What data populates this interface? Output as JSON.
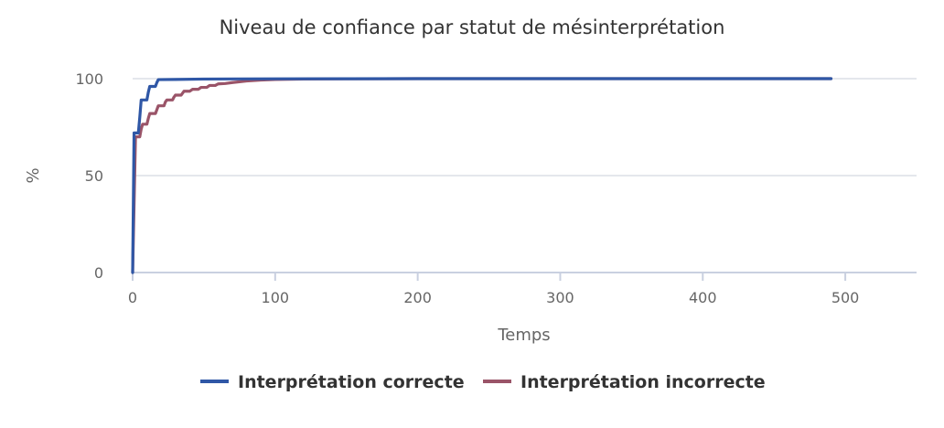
{
  "chart_data": {
    "type": "line",
    "title": "Niveau de confiance par statut de mésinterprétation",
    "xlabel": "Temps",
    "ylabel": "%",
    "xlim": [
      0,
      550
    ],
    "ylim": [
      0,
      100
    ],
    "x_ticks": [
      "0",
      "100",
      "200",
      "300",
      "400",
      "500"
    ],
    "y_ticks": [
      "0",
      "50",
      "100"
    ],
    "grid": "horizontal",
    "legend_position": "bottom",
    "series": [
      {
        "name": "Interprétation correcte",
        "color": "#2f57a6",
        "points": [
          [
            0,
            0
          ],
          [
            1,
            72
          ],
          [
            4,
            72
          ],
          [
            5,
            80
          ],
          [
            6,
            89
          ],
          [
            10,
            89
          ],
          [
            11,
            93
          ],
          [
            12,
            96
          ],
          [
            16,
            96
          ],
          [
            17,
            98
          ],
          [
            18,
            99.5
          ],
          [
            30,
            99.6
          ],
          [
            50,
            99.8
          ],
          [
            100,
            99.9
          ],
          [
            200,
            100
          ],
          [
            490,
            100
          ]
        ]
      },
      {
        "name": "Interprétation incorrecte",
        "color": "#9a5468",
        "points": [
          [
            0,
            0
          ],
          [
            2,
            70
          ],
          [
            5,
            70
          ],
          [
            6,
            74
          ],
          [
            7,
            76.5
          ],
          [
            10,
            76.5
          ],
          [
            11,
            79.5
          ],
          [
            12,
            82
          ],
          [
            16,
            82
          ],
          [
            17,
            84
          ],
          [
            18,
            86
          ],
          [
            22,
            86
          ],
          [
            23,
            88
          ],
          [
            24,
            89
          ],
          [
            28,
            89
          ],
          [
            29,
            90.5
          ],
          [
            30,
            91.5
          ],
          [
            34,
            91.5
          ],
          [
            35,
            92.5
          ],
          [
            36,
            93.5
          ],
          [
            40,
            93.5
          ],
          [
            42,
            94.5
          ],
          [
            46,
            94.5
          ],
          [
            48,
            95.5
          ],
          [
            52,
            95.5
          ],
          [
            54,
            96.5
          ],
          [
            58,
            96.5
          ],
          [
            60,
            97.3
          ],
          [
            65,
            97.5
          ],
          [
            70,
            98
          ],
          [
            80,
            98.8
          ],
          [
            90,
            99.3
          ],
          [
            100,
            99.6
          ],
          [
            120,
            99.8
          ],
          [
            150,
            99.9
          ],
          [
            200,
            100
          ],
          [
            490,
            100
          ]
        ]
      }
    ]
  }
}
